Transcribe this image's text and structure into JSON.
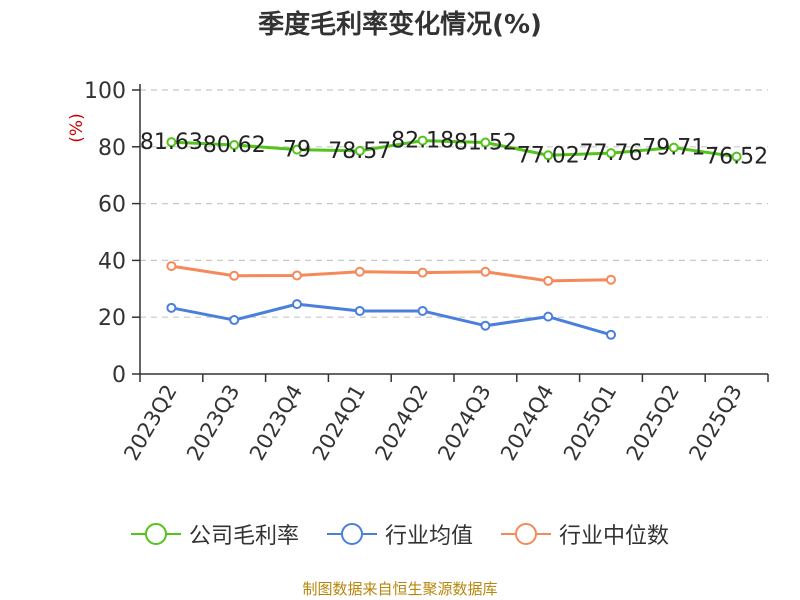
{
  "chart_data": {
    "type": "line",
    "title": "季度毛利率变化情况(%)",
    "ylabel": "(%)",
    "ylim": [
      0,
      100
    ],
    "yticks": [
      0,
      20,
      40,
      60,
      80,
      100
    ],
    "categories": [
      "2023Q2",
      "2023Q3",
      "2023Q4",
      "2024Q1",
      "2024Q2",
      "2024Q3",
      "2024Q4",
      "2025Q1",
      "2025Q2",
      "2025Q3"
    ],
    "grid": "horizontal dashed",
    "legend": "bottom",
    "series": [
      {
        "name": "公司毛利率",
        "color": "#52c41a",
        "values": [
          81.63,
          80.62,
          79,
          78.57,
          82.18,
          81.52,
          77.02,
          77.76,
          79.71,
          76.52
        ],
        "labels": [
          "81.63",
          "80.62",
          "79",
          "78.57",
          "82.18",
          "81.52",
          "77.02",
          "77.76",
          "79.71",
          "76.52"
        ]
      },
      {
        "name": "行业均值",
        "color": "#4a7fdc",
        "values": [
          23.3,
          19.0,
          24.6,
          22.2,
          22.2,
          17.0,
          20.2,
          13.8,
          null,
          null
        ]
      },
      {
        "name": "行业中位数",
        "color": "#f5895a",
        "values": [
          38.0,
          34.6,
          34.7,
          36.0,
          35.7,
          36.0,
          32.8,
          33.2,
          null,
          null
        ]
      }
    ]
  },
  "source": "制图数据来自恒生聚源数据库"
}
